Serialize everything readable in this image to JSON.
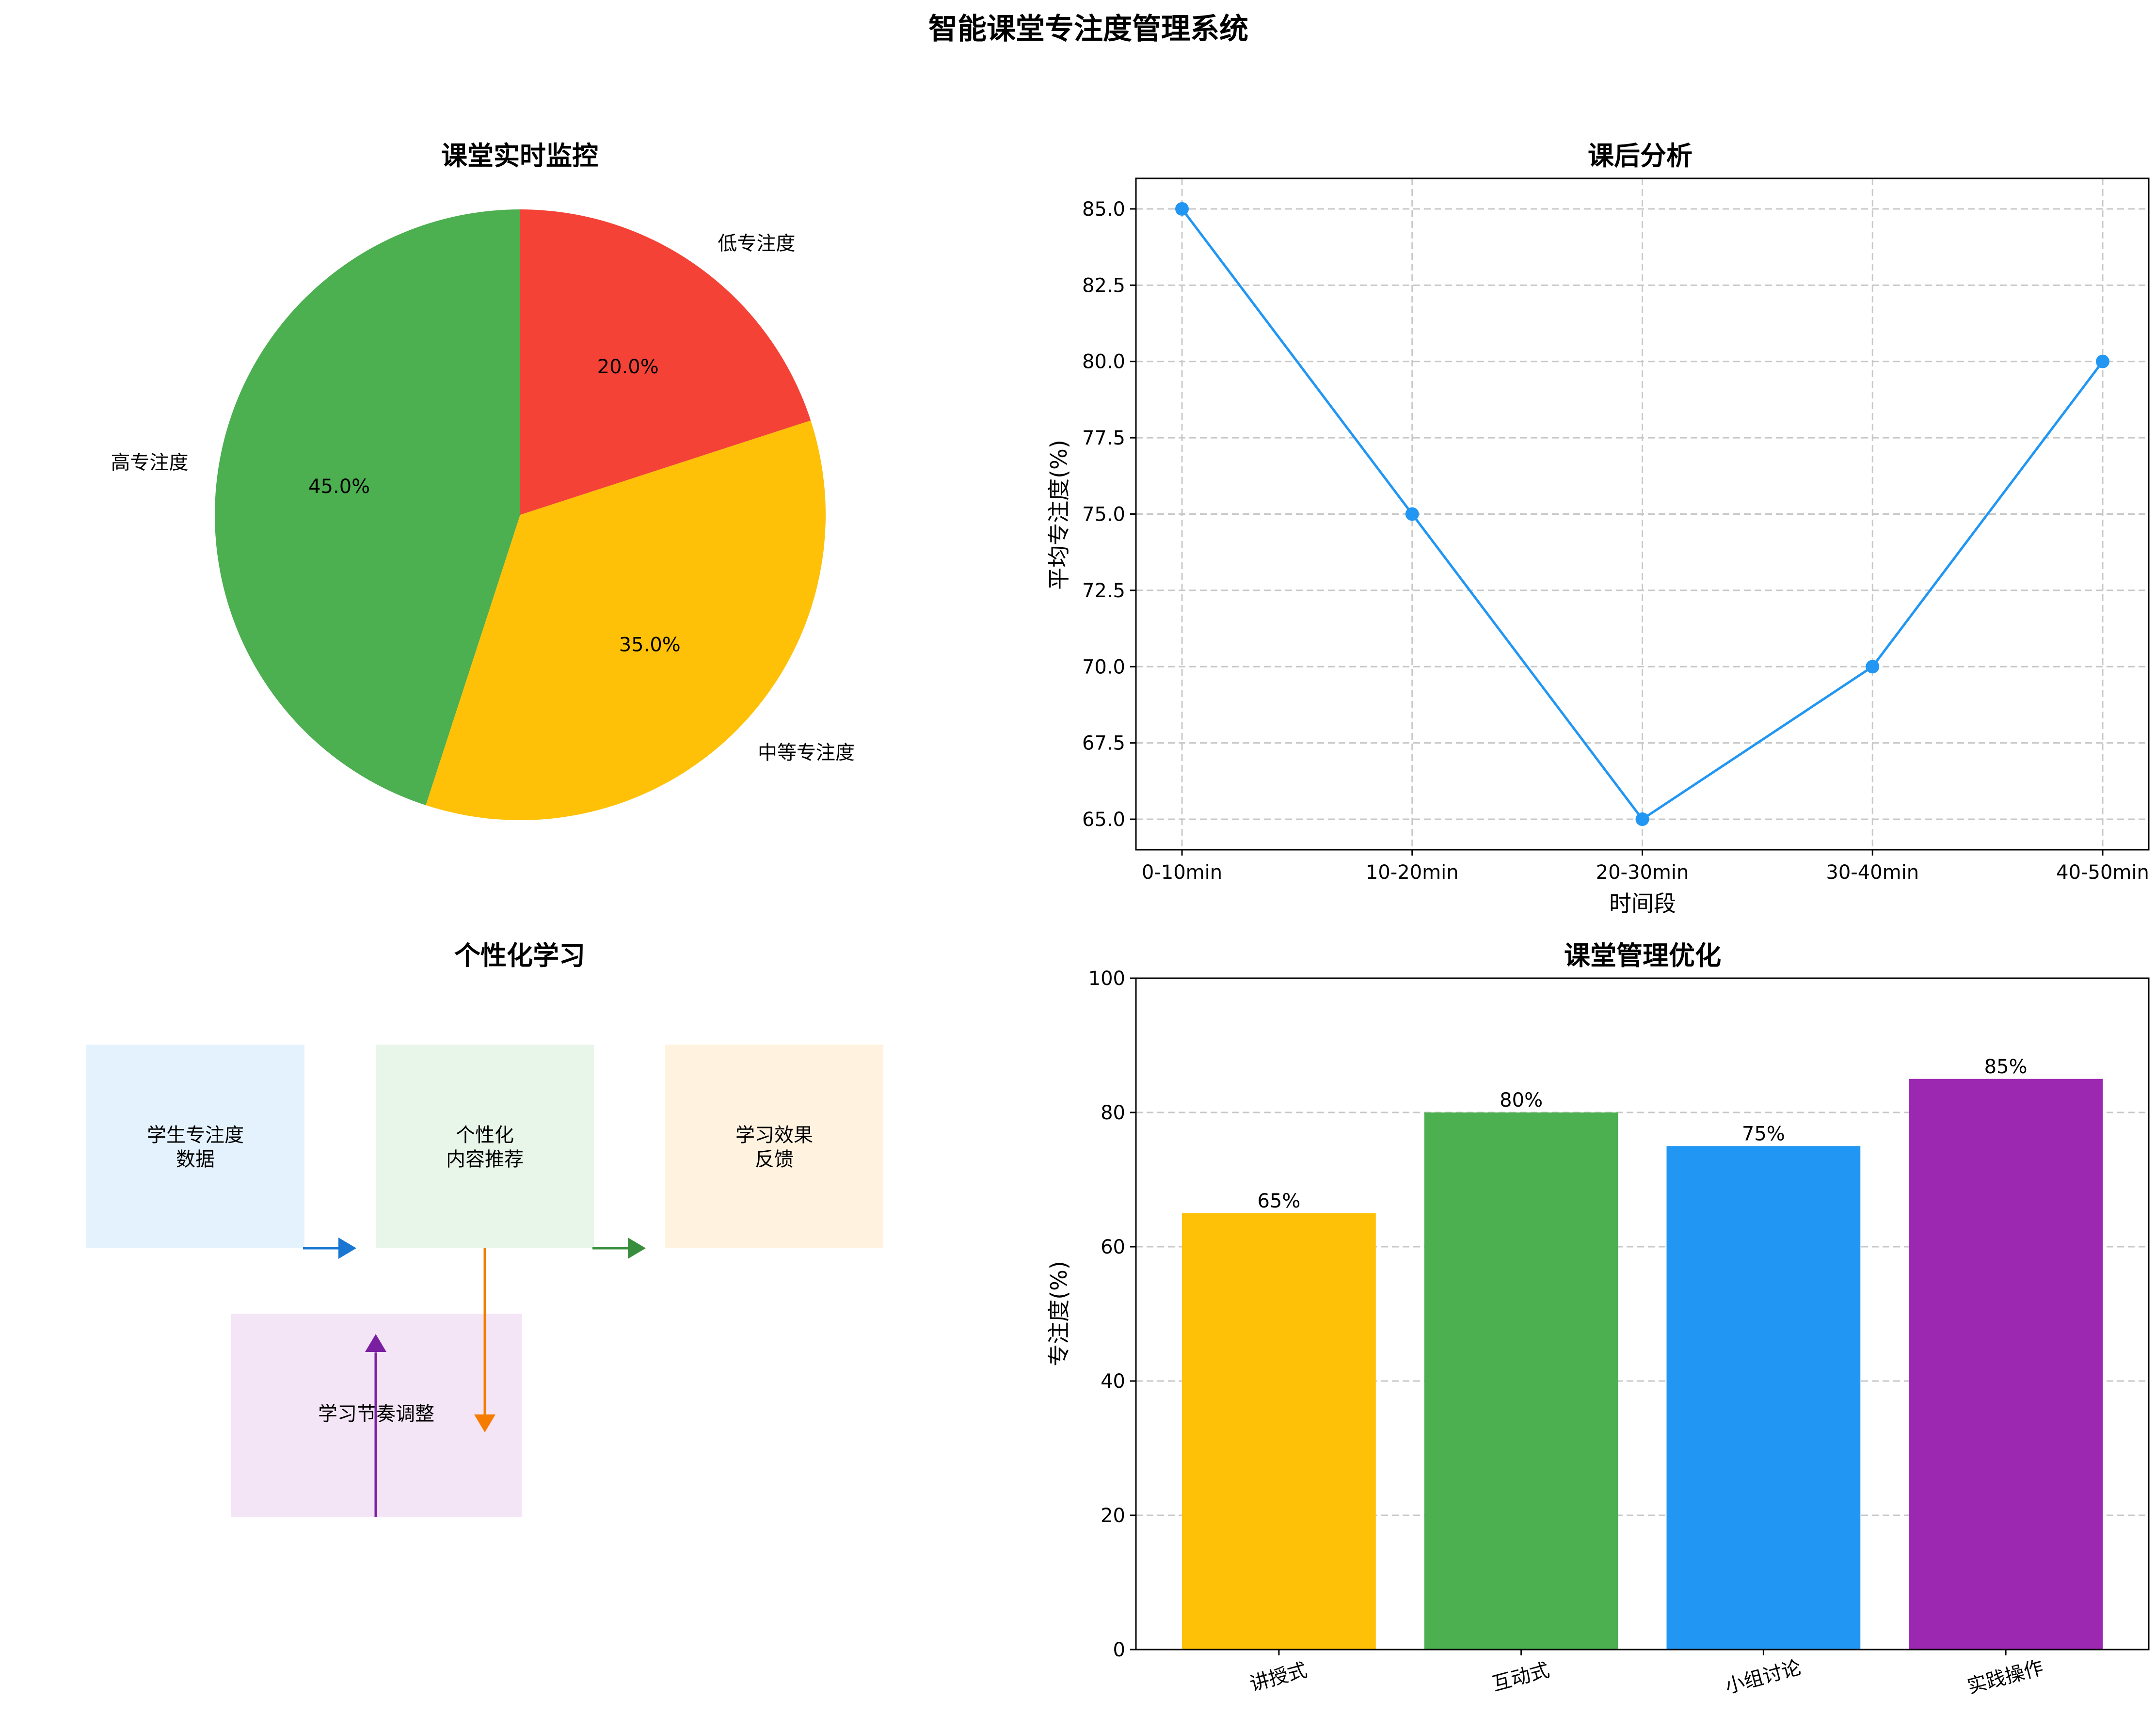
{
  "title": "智能课堂专注度管理系统",
  "colors": {
    "green": "#4CAF50",
    "yellow": "#FFC107",
    "red": "#F44336",
    "blue": "#2196F3",
    "purple": "#9C27B0",
    "grid": "#c8c8c8"
  },
  "chart_data": [
    {
      "type": "pie",
      "title": "课堂实时监控",
      "categories": [
        "高专注度",
        "中等专注度",
        "低专注度"
      ],
      "values": [
        45,
        35,
        20
      ],
      "value_labels": [
        "45.0%",
        "35.0%",
        "20.0%"
      ],
      "colors": [
        "#4CAF50",
        "#FFC107",
        "#F44336"
      ]
    },
    {
      "type": "line",
      "title": "课后分析",
      "categories": [
        "0-10min",
        "10-20min",
        "20-30min",
        "30-40min",
        "40-50min"
      ],
      "values": [
        85,
        75,
        65,
        70,
        80
      ],
      "xlabel": "时间段",
      "ylabel": "平均专注度(%)",
      "ylim": [
        64,
        86
      ],
      "yticks": [
        "65.0",
        "67.5",
        "70.0",
        "72.5",
        "75.0",
        "77.5",
        "80.0",
        "82.5",
        "85.0"
      ],
      "grid": true,
      "color": "#2196F3"
    },
    {
      "type": "bar",
      "title": "课堂管理优化",
      "categories": [
        "讲授式",
        "互动式",
        "小组讨论",
        "实践操作"
      ],
      "values": [
        65,
        80,
        75,
        85
      ],
      "value_labels": [
        "65%",
        "80%",
        "75%",
        "85%"
      ],
      "ylabel": "专注度(%)",
      "ylim": [
        0,
        100
      ],
      "yticks": [
        "0",
        "20",
        "40",
        "60",
        "80",
        "100"
      ],
      "grid": true,
      "colors": [
        "#FFC107",
        "#4CAF50",
        "#2196F3",
        "#9C27B0"
      ]
    }
  ],
  "diagram": {
    "title": "个性化学习",
    "boxes": [
      {
        "lines": [
          "学生专注度",
          "数据"
        ],
        "fill": "#E3F2FD"
      },
      {
        "lines": [
          "个性化",
          "内容推荐"
        ],
        "fill": "#E8F5E9"
      },
      {
        "lines": [
          "学习效果",
          "反馈"
        ],
        "fill": "#FFF3E0"
      },
      {
        "lines": [
          "学习节奏调整"
        ],
        "fill": "#F3E5F5"
      }
    ],
    "arrow_colors": [
      "#1976D2",
      "#388E3C",
      "#F57C00",
      "#7B1FA2"
    ]
  }
}
